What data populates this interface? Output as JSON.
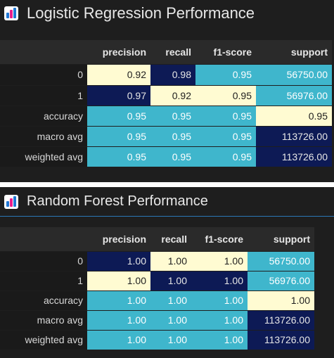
{
  "colors": {
    "panel_bg": "#1e1e1e",
    "header_bg": "#2a2a2a",
    "index_bg": "#1a1a1a",
    "heat_dark": "#0d1a55",
    "heat_mid": "#3fb6cc",
    "heat_light": "#fffbd2",
    "divider_blue": "#2b78b8"
  },
  "icon": "bar-chart-icon",
  "panels": [
    {
      "title": "Logistic Regression Performance",
      "table": {
        "columns": [
          "precision",
          "recall",
          "f1-score",
          "support"
        ],
        "rows": [
          {
            "label": "0",
            "values": [
              "0.92",
              "0.98",
              "0.95",
              "56750.00"
            ],
            "tones": [
              "high",
              "low",
              "mid",
              "mid"
            ]
          },
          {
            "label": "1",
            "values": [
              "0.97",
              "0.92",
              "0.95",
              "56976.00"
            ],
            "tones": [
              "low",
              "high",
              "high",
              "mid"
            ]
          },
          {
            "label": "accuracy",
            "values": [
              "0.95",
              "0.95",
              "0.95",
              "0.95"
            ],
            "tones": [
              "mid",
              "mid",
              "mid",
              "high"
            ]
          },
          {
            "label": "macro avg",
            "values": [
              "0.95",
              "0.95",
              "0.95",
              "113726.00"
            ],
            "tones": [
              "mid",
              "mid",
              "mid",
              "low"
            ]
          },
          {
            "label": "weighted avg",
            "values": [
              "0.95",
              "0.95",
              "0.95",
              "113726.00"
            ],
            "tones": [
              "mid",
              "mid",
              "mid",
              "low"
            ]
          }
        ]
      }
    },
    {
      "title": "Random Forest Performance",
      "table": {
        "columns": [
          "precision",
          "recall",
          "f1-score",
          "support"
        ],
        "rows": [
          {
            "label": "0",
            "values": [
              "1.00",
              "1.00",
              "1.00",
              "56750.00"
            ],
            "tones": [
              "low",
              "high",
              "high",
              "mid"
            ]
          },
          {
            "label": "1",
            "values": [
              "1.00",
              "1.00",
              "1.00",
              "56976.00"
            ],
            "tones": [
              "high",
              "low",
              "low",
              "mid"
            ]
          },
          {
            "label": "accuracy",
            "values": [
              "1.00",
              "1.00",
              "1.00",
              "1.00"
            ],
            "tones": [
              "mid",
              "mid",
              "mid",
              "high"
            ]
          },
          {
            "label": "macro avg",
            "values": [
              "1.00",
              "1.00",
              "1.00",
              "113726.00"
            ],
            "tones": [
              "mid",
              "mid",
              "mid",
              "low"
            ]
          },
          {
            "label": "weighted avg",
            "values": [
              "1.00",
              "1.00",
              "1.00",
              "113726.00"
            ],
            "tones": [
              "mid",
              "mid",
              "mid",
              "low"
            ]
          }
        ]
      }
    }
  ]
}
